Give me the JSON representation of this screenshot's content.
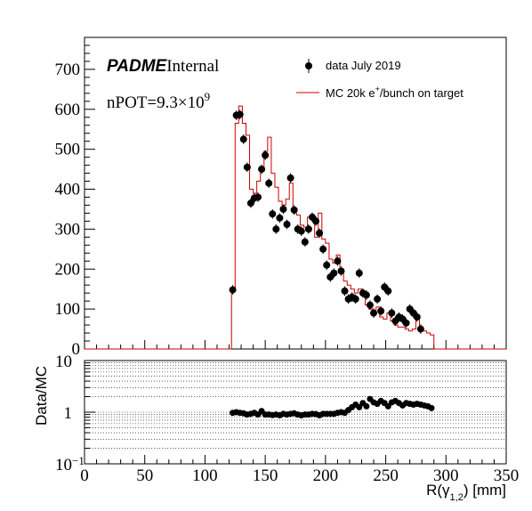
{
  "chart_data": [
    {
      "type": "histogram",
      "panel": "main",
      "xlim": [
        0,
        350
      ],
      "ylim": [
        0,
        780
      ],
      "yticks": [
        "0",
        "100",
        "200",
        "300",
        "400",
        "500",
        "600",
        "700"
      ],
      "brand": "PADME",
      "brand_suffix": "Internal",
      "npot_prefix": "nPOT=9.3×10",
      "npot_exp": "9",
      "legend": [
        {
          "label": "data July 2019",
          "style": "marker",
          "color": "#000000"
        },
        {
          "label_parts": [
            "MC 20k e",
            "+",
            "/bunch on target"
          ],
          "style": "line",
          "color": "#cc0000"
        }
      ],
      "series": [
        {
          "name": "data July 2019",
          "x": [
            123,
            126,
            129,
            132,
            135,
            138,
            141,
            144,
            147,
            150,
            153,
            156,
            159,
            162,
            165,
            168,
            171,
            174,
            177,
            180,
            183,
            186,
            189,
            192,
            195,
            198,
            201,
            204,
            207,
            210,
            213,
            216,
            219,
            222,
            225,
            228,
            231,
            234,
            237,
            240,
            243,
            246,
            249,
            252,
            255,
            258,
            261,
            264,
            267,
            270,
            273,
            276,
            279,
            282,
            285,
            288
          ],
          "y": [
            148,
            585,
            587,
            525,
            455,
            365,
            378,
            380,
            450,
            485,
            415,
            338,
            300,
            328,
            350,
            312,
            428,
            348,
            300,
            295,
            268,
            300,
            330,
            320,
            290,
            250,
            210,
            180,
            190,
            220,
            195,
            145,
            125,
            130,
            125,
            190,
            140,
            135,
            110,
            90,
            125,
            95,
            155,
            145,
            90,
            70,
            80,
            75,
            65,
            100,
            90,
            80,
            50,
            0,
            0,
            0
          ],
          "yerr": 12
        },
        {
          "name": "MC 20k e+/bunch on target",
          "bins_lo": [
            122,
            125,
            128,
            131,
            134,
            137,
            140,
            143,
            146,
            149,
            152,
            155,
            158,
            161,
            164,
            167,
            170,
            173,
            176,
            179,
            182,
            185,
            188,
            191,
            194,
            197,
            200,
            203,
            206,
            209,
            212,
            215,
            218,
            221,
            224,
            227,
            230,
            233,
            236,
            239,
            242,
            245,
            248,
            251,
            254,
            257,
            260,
            263,
            266,
            269,
            272,
            275,
            278,
            281,
            284,
            287
          ],
          "bins_hi": [
            125,
            128,
            131,
            134,
            137,
            140,
            143,
            146,
            149,
            152,
            155,
            158,
            161,
            164,
            167,
            170,
            173,
            176,
            179,
            182,
            185,
            188,
            191,
            194,
            197,
            200,
            203,
            206,
            209,
            212,
            215,
            218,
            221,
            224,
            227,
            230,
            233,
            236,
            239,
            242,
            245,
            248,
            251,
            254,
            257,
            260,
            263,
            266,
            269,
            272,
            275,
            278,
            281,
            284,
            287,
            290
          ],
          "values": [
            148,
            565,
            608,
            565,
            535,
            400,
            390,
            420,
            445,
            495,
            530,
            440,
            405,
            370,
            360,
            375,
            415,
            340,
            335,
            310,
            305,
            330,
            330,
            280,
            340,
            275,
            265,
            225,
            215,
            235,
            200,
            170,
            160,
            150,
            140,
            150,
            135,
            110,
            100,
            95,
            105,
            80,
            75,
            90,
            70,
            60,
            55,
            55,
            50,
            45,
            50,
            80,
            50,
            45,
            40,
            35
          ]
        }
      ]
    },
    {
      "type": "ratio",
      "panel": "ratio",
      "ylabel": "Data/MC",
      "xlabel_parts": [
        "R(γ",
        "1,2",
        ") [mm]"
      ],
      "xlim": [
        0,
        350
      ],
      "xticks": [
        "0",
        "50",
        "100",
        "150",
        "200",
        "250",
        "300",
        "350"
      ],
      "ylog": true,
      "ylim": [
        0.1,
        10
      ],
      "yticks": [
        {
          "value": 0.1,
          "label": "10",
          "exp": "−1"
        },
        {
          "value": 1,
          "label": "1"
        },
        {
          "value": 10,
          "label": "10"
        }
      ],
      "grid": "dotted",
      "x": [
        123,
        126,
        129,
        132,
        135,
        138,
        141,
        144,
        147,
        150,
        153,
        156,
        159,
        162,
        165,
        168,
        171,
        174,
        177,
        180,
        183,
        186,
        189,
        192,
        195,
        198,
        201,
        204,
        207,
        210,
        213,
        216,
        219,
        222,
        225,
        228,
        231,
        234,
        237,
        240,
        243,
        246,
        249,
        252,
        255,
        258,
        261,
        264,
        267,
        270,
        273,
        276,
        279,
        282,
        285,
        288
      ],
      "y": [
        0.97,
        1.0,
        0.97,
        0.95,
        0.9,
        0.93,
        0.97,
        0.9,
        1.05,
        0.9,
        0.9,
        0.88,
        0.9,
        0.87,
        0.93,
        0.9,
        0.93,
        0.95,
        0.9,
        0.87,
        0.9,
        0.9,
        0.93,
        0.92,
        0.87,
        0.93,
        0.93,
        0.93,
        0.93,
        0.97,
        1.0,
        0.97,
        1.1,
        1.25,
        1.4,
        1.25,
        1.5,
        1.3,
        1.8,
        1.55,
        1.45,
        1.65,
        1.5,
        1.3,
        1.55,
        1.65,
        1.5,
        1.35,
        1.5,
        1.45,
        1.4,
        1.45,
        1.4,
        1.35,
        1.3,
        1.2
      ]
    }
  ]
}
